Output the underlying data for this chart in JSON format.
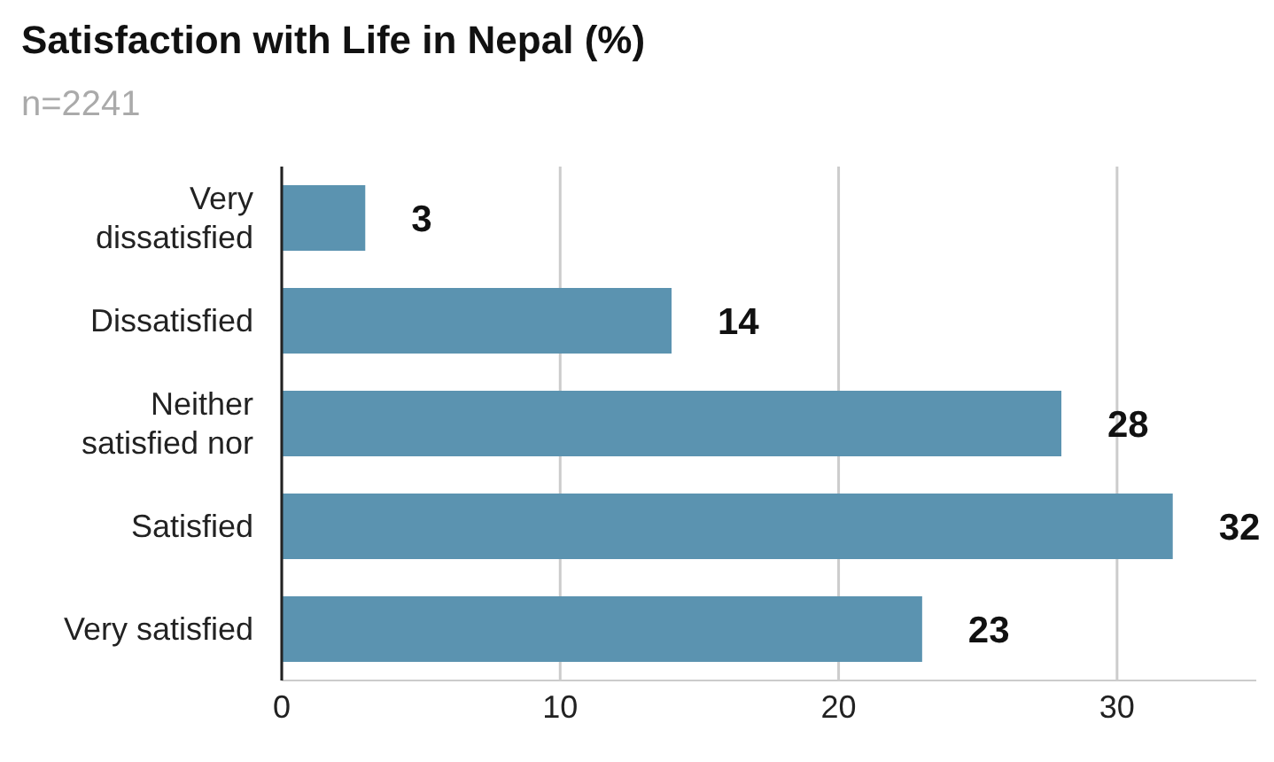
{
  "chart_data": {
    "type": "bar",
    "orientation": "horizontal",
    "title": "Satisfaction with Life in Nepal (%)",
    "subtitle": "n=2241",
    "categories": [
      "Very dissatisfied",
      "Dissatisfied",
      "Neither satisfied nor",
      "Satisfied",
      "Very satisfied"
    ],
    "values": [
      3,
      14,
      28,
      32,
      23
    ],
    "color": "#5b93b0",
    "xlim": [
      0,
      35
    ],
    "xticks": [
      0,
      10,
      20,
      30
    ],
    "grid": "x",
    "data_labels": true,
    "legend": false
  }
}
